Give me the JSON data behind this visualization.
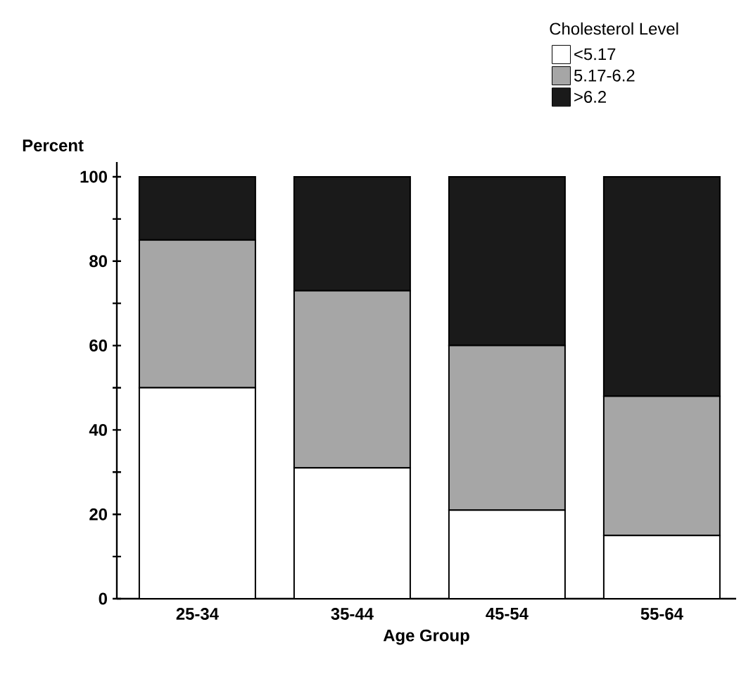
{
  "chart_data": {
    "type": "bar",
    "stacked": true,
    "xlabel": "Age Group",
    "ylabel": "Percent",
    "legend_title": "Cholesterol Level",
    "categories": [
      "25-34",
      "35-44",
      "45-54",
      "55-64"
    ],
    "series": [
      {
        "name": "<5.17",
        "color": "#ffffff",
        "values": [
          50,
          31,
          21,
          15
        ]
      },
      {
        "name": "5.17-6.2",
        "color": "#a6a6a6",
        "values": [
          35,
          42,
          39,
          33
        ]
      },
      {
        "name": ">6.2",
        "color": "#1a1a1a",
        "values": [
          15,
          27,
          40,
          52
        ]
      }
    ],
    "ylim": [
      0,
      100
    ],
    "yticks": [
      0,
      {
        "value": 10,
        "label": null
      },
      20,
      {
        "value": 30,
        "label": null
      },
      40,
      {
        "value": 50,
        "label": null
      },
      60,
      {
        "value": 70,
        "label": null
      },
      80,
      {
        "value": 90,
        "label": null
      },
      100
    ],
    "legend": "top right"
  }
}
